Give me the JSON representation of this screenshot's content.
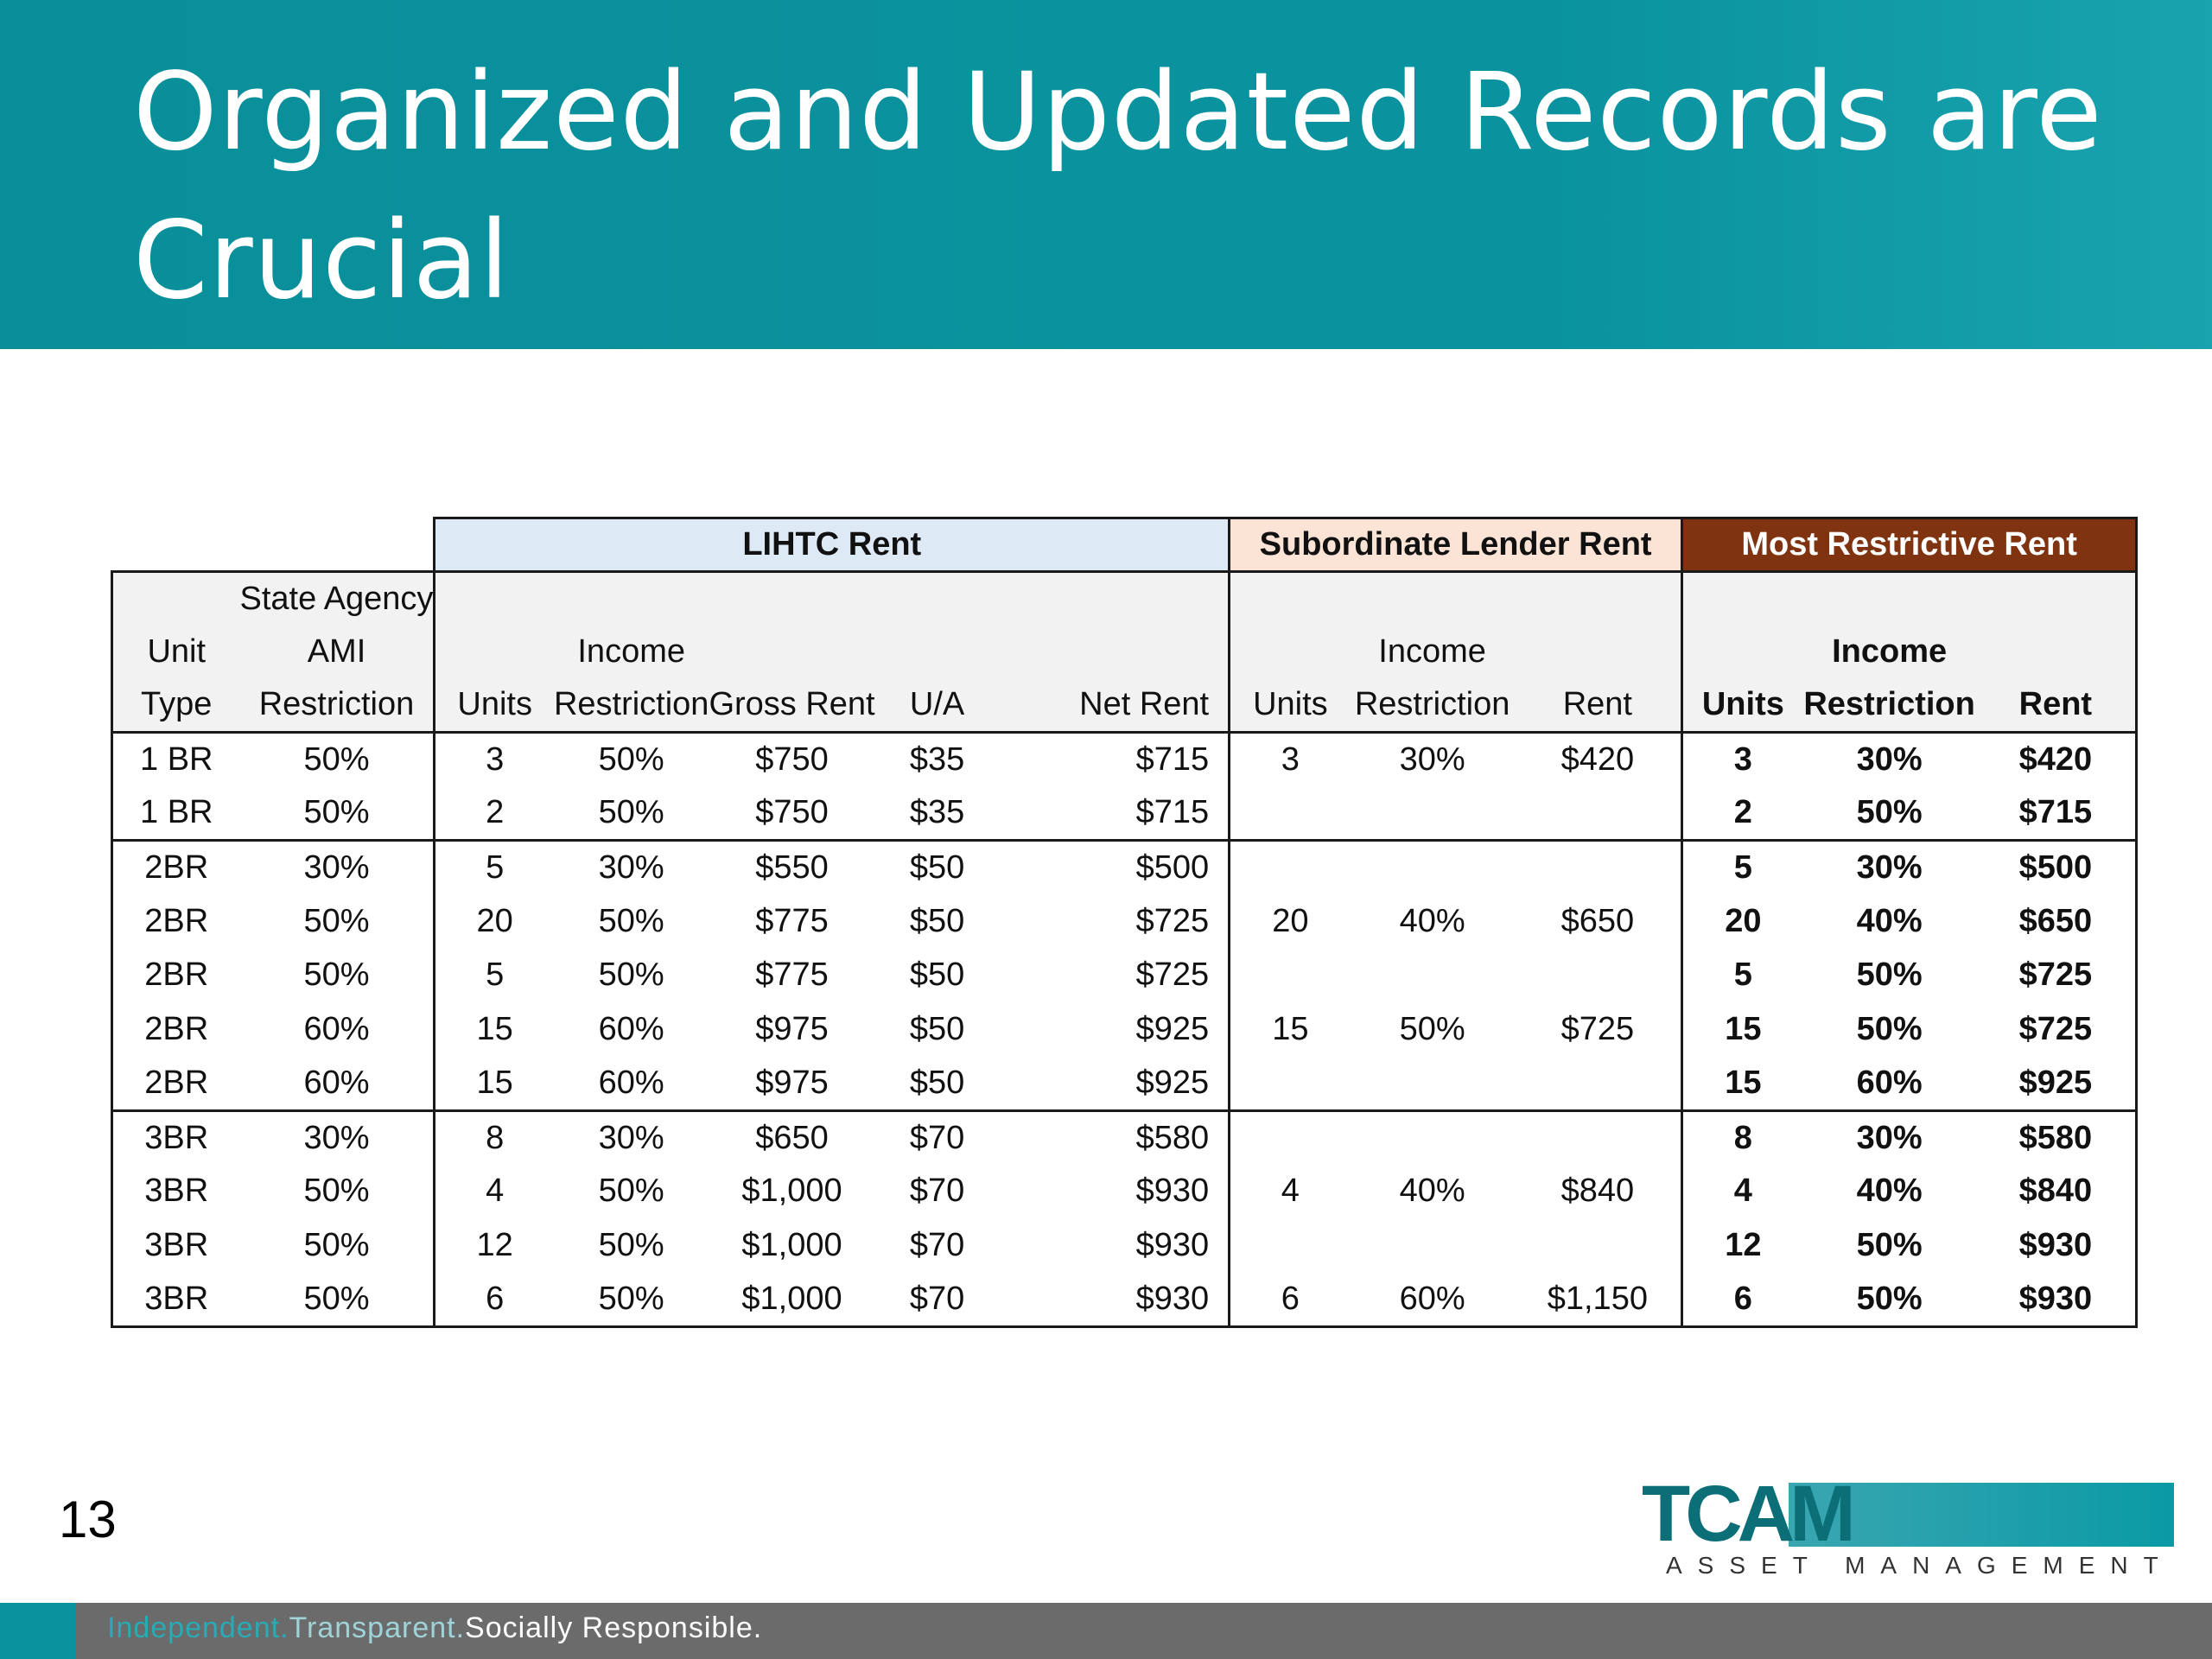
{
  "slide": {
    "title": "Organized and Updated Records are Crucial",
    "page_number": "13"
  },
  "table": {
    "group_headers": {
      "lihtc": "LIHTC Rent",
      "subordinate": "Subordinate Lender Rent",
      "most_restrictive": "Most Restrictive Rent"
    },
    "column_headers": {
      "unit_type": [
        "Unit",
        "Type"
      ],
      "ami": [
        "State Agency",
        "AMI",
        "Restriction"
      ],
      "lihtc_units": "Units",
      "lihtc_income": [
        "Income",
        "Restriction"
      ],
      "gross_rent": "Gross Rent",
      "ua": "U/A",
      "net_rent": "Net Rent",
      "sub_units": "Units",
      "sub_income": [
        "Income",
        "Restriction"
      ],
      "sub_rent": "Rent",
      "most_units": "Units",
      "most_income": [
        "Income",
        "Restriction"
      ],
      "most_rent": "Rent"
    },
    "rows": [
      {
        "unit_type": "1 BR",
        "ami": "50%",
        "lihtc_units": "3",
        "lihtc_income": "50%",
        "gross_rent": "$750",
        "ua": "$35",
        "net_rent": "$715",
        "sub_units": "3",
        "sub_income": "30%",
        "sub_rent": "$420",
        "most_units": "3",
        "most_income": "30%",
        "most_rent": "$420"
      },
      {
        "unit_type": "1 BR",
        "ami": "50%",
        "lihtc_units": "2",
        "lihtc_income": "50%",
        "gross_rent": "$750",
        "ua": "$35",
        "net_rent": "$715",
        "sub_units": "",
        "sub_income": "",
        "sub_rent": "",
        "most_units": "2",
        "most_income": "50%",
        "most_rent": "$715"
      },
      {
        "unit_type": "2BR",
        "ami": "30%",
        "lihtc_units": "5",
        "lihtc_income": "30%",
        "gross_rent": "$550",
        "ua": "$50",
        "net_rent": "$500",
        "sub_units": "",
        "sub_income": "",
        "sub_rent": "",
        "most_units": "5",
        "most_income": "30%",
        "most_rent": "$500"
      },
      {
        "unit_type": "2BR",
        "ami": "50%",
        "lihtc_units": "20",
        "lihtc_income": "50%",
        "gross_rent": "$775",
        "ua": "$50",
        "net_rent": "$725",
        "sub_units": "20",
        "sub_income": "40%",
        "sub_rent": "$650",
        "most_units": "20",
        "most_income": "40%",
        "most_rent": "$650"
      },
      {
        "unit_type": "2BR",
        "ami": "50%",
        "lihtc_units": "5",
        "lihtc_income": "50%",
        "gross_rent": "$775",
        "ua": "$50",
        "net_rent": "$725",
        "sub_units": "",
        "sub_income": "",
        "sub_rent": "",
        "most_units": "5",
        "most_income": "50%",
        "most_rent": "$725"
      },
      {
        "unit_type": "2BR",
        "ami": "60%",
        "lihtc_units": "15",
        "lihtc_income": "60%",
        "gross_rent": "$975",
        "ua": "$50",
        "net_rent": "$925",
        "sub_units": "15",
        "sub_income": "50%",
        "sub_rent": "$725",
        "most_units": "15",
        "most_income": "50%",
        "most_rent": "$725"
      },
      {
        "unit_type": "2BR",
        "ami": "60%",
        "lihtc_units": "15",
        "lihtc_income": "60%",
        "gross_rent": "$975",
        "ua": "$50",
        "net_rent": "$925",
        "sub_units": "",
        "sub_income": "",
        "sub_rent": "",
        "most_units": "15",
        "most_income": "60%",
        "most_rent": "$925"
      },
      {
        "unit_type": "3BR",
        "ami": "30%",
        "lihtc_units": "8",
        "lihtc_income": "30%",
        "gross_rent": "$650",
        "ua": "$70",
        "net_rent": "$580",
        "sub_units": "",
        "sub_income": "",
        "sub_rent": "",
        "most_units": "8",
        "most_income": "30%",
        "most_rent": "$580"
      },
      {
        "unit_type": "3BR",
        "ami": "50%",
        "lihtc_units": "4",
        "lihtc_income": "50%",
        "gross_rent": "$1,000",
        "ua": "$70",
        "net_rent": "$930",
        "sub_units": "4",
        "sub_income": "40%",
        "sub_rent": "$840",
        "most_units": "4",
        "most_income": "40%",
        "most_rent": "$840"
      },
      {
        "unit_type": "3BR",
        "ami": "50%",
        "lihtc_units": "12",
        "lihtc_income": "50%",
        "gross_rent": "$1,000",
        "ua": "$70",
        "net_rent": "$930",
        "sub_units": "",
        "sub_income": "",
        "sub_rent": "",
        "most_units": "12",
        "most_income": "50%",
        "most_rent": "$930"
      },
      {
        "unit_type": "3BR",
        "ami": "50%",
        "lihtc_units": "6",
        "lihtc_income": "50%",
        "gross_rent": "$1,000",
        "ua": "$70",
        "net_rent": "$930",
        "sub_units": "6",
        "sub_income": "60%",
        "sub_rent": "$1,150",
        "most_units": "6",
        "most_income": "50%",
        "most_rent": "$930"
      }
    ]
  },
  "logo": {
    "wordmark": "TCAM",
    "subtitle": "ASSET MANAGEMENT"
  },
  "footer": {
    "part1": "Independent.",
    "part2": "Transparent.",
    "part3": "Socially Responsible."
  },
  "colors": {
    "title_band": "#0a939f",
    "lihtc_header": "#dde9f5",
    "subordinate_header": "#fbe3d6",
    "most_restrictive_header": "#7f3310",
    "footer_bar": "#6b6b6b"
  }
}
